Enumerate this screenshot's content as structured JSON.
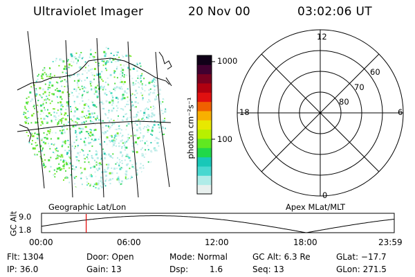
{
  "header": {
    "instrument": "Ultraviolet Imager",
    "date": "20 Nov 00",
    "time": "03:02:06 UT"
  },
  "colorbar": {
    "unit_label": "photon cm⁻²s⁻¹",
    "tick_top": "1000",
    "tick_mid": "100",
    "palette": [
      "#e8f0ee",
      "#b0ece8",
      "#48d8d0",
      "#18c8b8",
      "#20d848",
      "#60e820",
      "#b8f000",
      "#e8e800",
      "#f8b000",
      "#f06000",
      "#e01010",
      "#b00010",
      "#780020",
      "#400030",
      "#100018"
    ]
  },
  "polar_plot": {
    "top_label": "12",
    "left_label": "18",
    "right_label": "6",
    "bottom_label": "0",
    "lat_labels": [
      "60",
      "70",
      "80"
    ]
  },
  "panel_titles": {
    "left": "Geographic Lat/Lon",
    "right": "Apex MLat/MLT"
  },
  "altitude_plot": {
    "axis_label": "GC Alt",
    "y_top": "9.0",
    "y_bottom": "1.8",
    "x_ticks": [
      "00:00",
      "06:00",
      "12:00",
      "18:00",
      "23:59"
    ],
    "marker_time_hours": 3.04
  },
  "status": {
    "flt": "Flt: 1304",
    "ip": "IP: 36.0",
    "door": "Door: Open",
    "gain": "Gain: 13",
    "mode": "Mode: Normal",
    "dsp_label": "Dsp:",
    "dsp_value": "1.6",
    "gc_alt": "GC Alt: 6.3 Re",
    "seq": "Seq: 13",
    "glat": "GLat: −17.7",
    "glon": "GLon: 271.5"
  }
}
